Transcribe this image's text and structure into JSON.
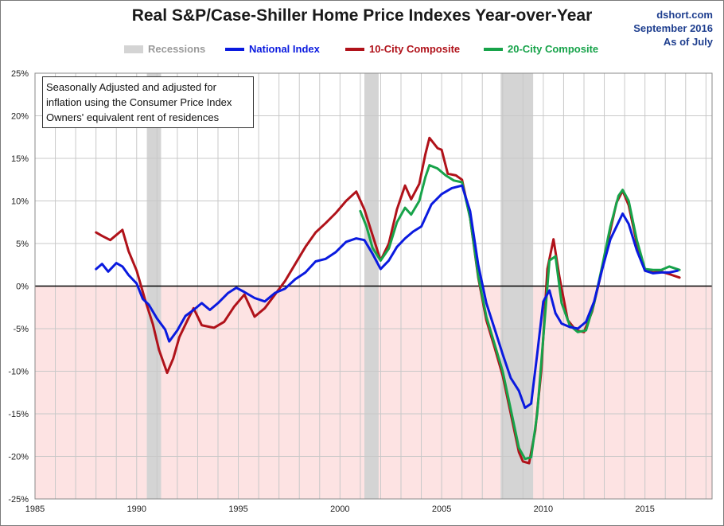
{
  "header": {
    "title": "Real S&P/Case-Shiller Home Price Indexes Year-over-Year",
    "source_lines": [
      "dshort.com",
      "September 2016",
      "As of July"
    ]
  },
  "annotation": {
    "lines": [
      "Seasonally Adjusted and adjusted for",
      "inflation using the Consumer Price Index",
      "Owners' equivalent rent of residences"
    ]
  },
  "colors": {
    "recession": "#d4d4d4",
    "national": "#0a1adf",
    "ten_city": "#b0121a",
    "twenty_city": "#17a34a",
    "negative_zone": "#fde3e3",
    "grid": "#c8c8c8",
    "zero_line": "#000000"
  },
  "chart_data": {
    "type": "line",
    "title": "Real S&P/Case-Shiller Home Price Indexes Year-over-Year",
    "xlabel": "",
    "ylabel": "",
    "xlim": [
      1985,
      2018.3
    ],
    "ylim": [
      -25,
      25
    ],
    "x_ticks": [
      1985,
      1990,
      1995,
      2000,
      2005,
      2010,
      2015
    ],
    "x_tick_labels": [
      "1985",
      "1990",
      "1995",
      "2000",
      "2005",
      "2010",
      "2015"
    ],
    "y_ticks": [
      25,
      20,
      15,
      10,
      5,
      0,
      -5,
      -10,
      -15,
      -20,
      -25
    ],
    "y_tick_labels": [
      "25%",
      "20%",
      "15%",
      "10%",
      "5%",
      "0%",
      "-5%",
      "-10%",
      "-15%",
      "-20%",
      "-25%"
    ],
    "grid": true,
    "negative_zone_shaded": true,
    "legend_position": "top-center",
    "legend": [
      {
        "label": "Recessions",
        "kind": "recession"
      },
      {
        "label": "National Index",
        "kind": "series",
        "series": 0
      },
      {
        "label": "10-City Composite",
        "kind": "series",
        "series": 1
      },
      {
        "label": "20-City Composite",
        "kind": "series",
        "series": 2
      }
    ],
    "recessions": [
      {
        "start": 1990.5,
        "end": 1991.2
      },
      {
        "start": 2001.2,
        "end": 2001.9
      },
      {
        "start": 2007.9,
        "end": 2009.5
      }
    ],
    "series": [
      {
        "name": "National Index",
        "color": "#0a1adf",
        "points": [
          [
            1988.0,
            2.0
          ],
          [
            1988.3,
            2.6
          ],
          [
            1988.6,
            1.7
          ],
          [
            1989.0,
            2.7
          ],
          [
            1989.3,
            2.3
          ],
          [
            1989.6,
            1.3
          ],
          [
            1990.0,
            0.3
          ],
          [
            1990.3,
            -1.5
          ],
          [
            1990.6,
            -2.2
          ],
          [
            1991.0,
            -3.8
          ],
          [
            1991.4,
            -5.1
          ],
          [
            1991.6,
            -6.5
          ],
          [
            1992.0,
            -5.2
          ],
          [
            1992.4,
            -3.5
          ],
          [
            1992.8,
            -2.8
          ],
          [
            1993.2,
            -2.0
          ],
          [
            1993.6,
            -2.8
          ],
          [
            1994.0,
            -2.0
          ],
          [
            1994.5,
            -0.8
          ],
          [
            1994.9,
            -0.2
          ],
          [
            1995.3,
            -0.7
          ],
          [
            1995.8,
            -1.4
          ],
          [
            1996.3,
            -1.8
          ],
          [
            1996.8,
            -0.8
          ],
          [
            1997.3,
            -0.3
          ],
          [
            1997.8,
            0.8
          ],
          [
            1998.3,
            1.6
          ],
          [
            1998.8,
            2.9
          ],
          [
            1999.3,
            3.2
          ],
          [
            1999.8,
            4.0
          ],
          [
            2000.3,
            5.2
          ],
          [
            2000.8,
            5.6
          ],
          [
            2001.2,
            5.4
          ],
          [
            2001.6,
            3.8
          ],
          [
            2002.0,
            2.0
          ],
          [
            2002.4,
            3.0
          ],
          [
            2002.8,
            4.6
          ],
          [
            2003.2,
            5.6
          ],
          [
            2003.6,
            6.4
          ],
          [
            2004.0,
            7.0
          ],
          [
            2004.5,
            9.6
          ],
          [
            2005.0,
            10.8
          ],
          [
            2005.5,
            11.5
          ],
          [
            2006.0,
            11.8
          ],
          [
            2006.4,
            8.8
          ],
          [
            2006.8,
            2.5
          ],
          [
            2007.2,
            -2.0
          ],
          [
            2007.6,
            -5.0
          ],
          [
            2008.0,
            -8.0
          ],
          [
            2008.4,
            -10.8
          ],
          [
            2008.8,
            -12.3
          ],
          [
            2009.1,
            -14.3
          ],
          [
            2009.4,
            -13.8
          ],
          [
            2009.7,
            -8.0
          ],
          [
            2010.0,
            -1.8
          ],
          [
            2010.3,
            -0.5
          ],
          [
            2010.6,
            -3.2
          ],
          [
            2010.9,
            -4.4
          ],
          [
            2011.3,
            -4.8
          ],
          [
            2011.7,
            -5.0
          ],
          [
            2012.1,
            -4.2
          ],
          [
            2012.5,
            -1.8
          ],
          [
            2012.9,
            2.0
          ],
          [
            2013.3,
            5.5
          ],
          [
            2013.7,
            7.5
          ],
          [
            2013.9,
            8.5
          ],
          [
            2014.2,
            7.3
          ],
          [
            2014.6,
            4.2
          ],
          [
            2015.0,
            1.8
          ],
          [
            2015.4,
            1.5
          ],
          [
            2015.8,
            1.6
          ],
          [
            2016.2,
            1.6
          ],
          [
            2016.6,
            1.8
          ]
        ]
      },
      {
        "name": "10-City Composite",
        "color": "#b0121a",
        "points": [
          [
            1988.0,
            6.3
          ],
          [
            1988.3,
            5.9
          ],
          [
            1988.7,
            5.4
          ],
          [
            1989.0,
            6.0
          ],
          [
            1989.3,
            6.6
          ],
          [
            1989.6,
            4.1
          ],
          [
            1990.0,
            1.8
          ],
          [
            1990.4,
            -1.5
          ],
          [
            1990.8,
            -4.5
          ],
          [
            1991.1,
            -7.5
          ],
          [
            1991.5,
            -10.2
          ],
          [
            1991.8,
            -8.5
          ],
          [
            1992.1,
            -6.0
          ],
          [
            1992.5,
            -4.0
          ],
          [
            1992.8,
            -2.6
          ],
          [
            1993.2,
            -4.6
          ],
          [
            1993.8,
            -4.9
          ],
          [
            1994.3,
            -4.2
          ],
          [
            1994.8,
            -2.4
          ],
          [
            1995.3,
            -1.0
          ],
          [
            1995.8,
            -3.6
          ],
          [
            1996.3,
            -2.6
          ],
          [
            1996.8,
            -1.0
          ],
          [
            1997.3,
            0.6
          ],
          [
            1997.8,
            2.6
          ],
          [
            1998.3,
            4.6
          ],
          [
            1998.8,
            6.3
          ],
          [
            1999.3,
            7.4
          ],
          [
            1999.8,
            8.6
          ],
          [
            2000.3,
            10.0
          ],
          [
            2000.8,
            11.1
          ],
          [
            2001.2,
            9.0
          ],
          [
            2001.6,
            6.0
          ],
          [
            2002.0,
            3.0
          ],
          [
            2002.4,
            5.0
          ],
          [
            2002.8,
            9.0
          ],
          [
            2003.2,
            11.8
          ],
          [
            2003.5,
            10.2
          ],
          [
            2003.9,
            12.0
          ],
          [
            2004.2,
            15.5
          ],
          [
            2004.4,
            17.4
          ],
          [
            2004.8,
            16.2
          ],
          [
            2005.0,
            16.0
          ],
          [
            2005.3,
            13.2
          ],
          [
            2005.7,
            13.0
          ],
          [
            2006.0,
            12.5
          ],
          [
            2006.4,
            8.0
          ],
          [
            2006.8,
            1.0
          ],
          [
            2007.2,
            -4.0
          ],
          [
            2007.6,
            -7.2
          ],
          [
            2008.0,
            -10.5
          ],
          [
            2008.4,
            -15.0
          ],
          [
            2008.8,
            -19.5
          ],
          [
            2009.0,
            -20.6
          ],
          [
            2009.3,
            -20.8
          ],
          [
            2009.6,
            -17.0
          ],
          [
            2009.9,
            -10.0
          ],
          [
            2010.2,
            2.0
          ],
          [
            2010.5,
            5.5
          ],
          [
            2010.8,
            1.0
          ],
          [
            2011.2,
            -4.0
          ],
          [
            2011.6,
            -5.2
          ],
          [
            2012.0,
            -5.4
          ],
          [
            2012.4,
            -3.0
          ],
          [
            2012.8,
            1.0
          ],
          [
            2013.2,
            5.5
          ],
          [
            2013.6,
            9.8
          ],
          [
            2013.9,
            11.2
          ],
          [
            2014.2,
            9.5
          ],
          [
            2014.6,
            5.0
          ],
          [
            2015.0,
            1.8
          ],
          [
            2015.4,
            1.6
          ],
          [
            2015.8,
            1.7
          ],
          [
            2016.2,
            1.4
          ],
          [
            2016.7,
            1.0
          ]
        ]
      },
      {
        "name": "20-City Composite",
        "color": "#17a34a",
        "points": [
          [
            2001.0,
            8.8
          ],
          [
            2001.3,
            7.0
          ],
          [
            2001.6,
            4.5
          ],
          [
            2002.0,
            3.0
          ],
          [
            2002.4,
            4.4
          ],
          [
            2002.8,
            7.5
          ],
          [
            2003.2,
            9.2
          ],
          [
            2003.5,
            8.4
          ],
          [
            2003.9,
            10.0
          ],
          [
            2004.2,
            12.8
          ],
          [
            2004.4,
            14.2
          ],
          [
            2004.8,
            13.8
          ],
          [
            2005.2,
            13.0
          ],
          [
            2005.6,
            12.4
          ],
          [
            2006.0,
            12.2
          ],
          [
            2006.4,
            8.0
          ],
          [
            2006.8,
            1.2
          ],
          [
            2007.2,
            -3.6
          ],
          [
            2007.6,
            -6.8
          ],
          [
            2008.0,
            -10.0
          ],
          [
            2008.4,
            -14.5
          ],
          [
            2008.8,
            -19.0
          ],
          [
            2009.1,
            -20.3
          ],
          [
            2009.4,
            -20.1
          ],
          [
            2009.7,
            -15.0
          ],
          [
            2010.0,
            -6.0
          ],
          [
            2010.3,
            3.0
          ],
          [
            2010.6,
            3.5
          ],
          [
            2010.9,
            -2.0
          ],
          [
            2011.3,
            -4.6
          ],
          [
            2011.7,
            -5.4
          ],
          [
            2012.1,
            -5.2
          ],
          [
            2012.5,
            -2.0
          ],
          [
            2012.9,
            2.4
          ],
          [
            2013.3,
            7.0
          ],
          [
            2013.7,
            10.6
          ],
          [
            2013.9,
            11.3
          ],
          [
            2014.2,
            10.0
          ],
          [
            2014.6,
            5.4
          ],
          [
            2015.0,
            2.0
          ],
          [
            2015.4,
            1.9
          ],
          [
            2015.8,
            1.9
          ],
          [
            2016.2,
            2.3
          ],
          [
            2016.7,
            1.9
          ]
        ]
      }
    ]
  }
}
